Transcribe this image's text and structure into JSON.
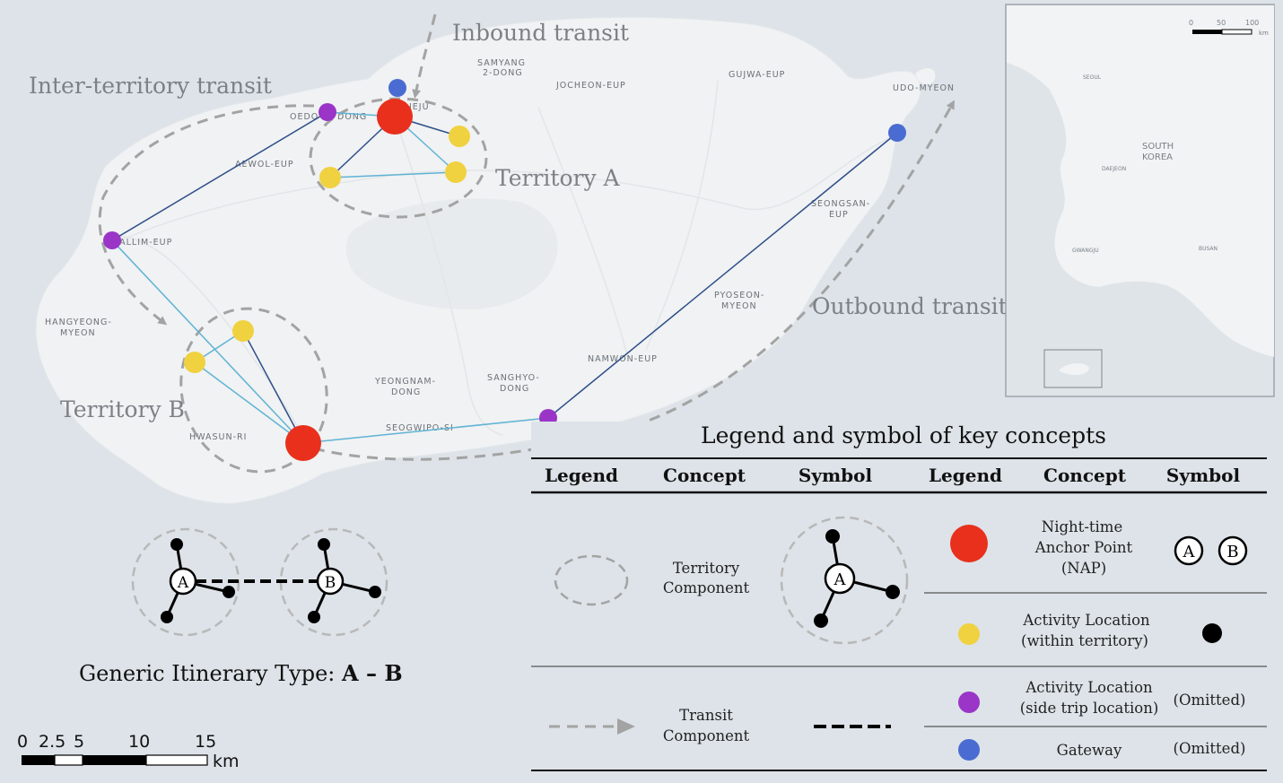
{
  "map_labels": {
    "inbound": "Inbound transit",
    "inter_territory": "Inter-territory transit",
    "outbound": "Outbound transit",
    "territory_a": "Territory A",
    "territory_b": "Territory B",
    "places": [
      "SAMYANG",
      "2-DONG",
      "JOCHEON-EUP",
      "GUJWA-EUP",
      "UDO-MYEON",
      "OEDO",
      "DONG",
      "JEJU",
      "AEWOL-EUP",
      "HALLIM-EUP",
      "SEONGSAN-",
      "EUP",
      "HANGYEONG-",
      "MYEON",
      "PYOSEON-",
      "MYEON",
      "NAMWON-EUP",
      "YEONGNAM-",
      "DONG",
      "SANGHYO-",
      "DONG",
      "SEOGWIPO-SI",
      "HWASUN-RI"
    ]
  },
  "inset": {
    "scale_ticks": [
      "0",
      "50",
      "100"
    ],
    "unit": "km",
    "labels": [
      "SEOUL",
      "SOUTH",
      "KOREA",
      "DAEJEON",
      "GWANGJU",
      "BUSAN"
    ]
  },
  "scale_bar": {
    "ticks": [
      "0",
      "2.5",
      "5",
      "10",
      "15"
    ],
    "unit": "km"
  },
  "itinerary": {
    "label": "Generic Itinerary Type: ",
    "formula": "A – B",
    "node_a": "A",
    "node_b": "B"
  },
  "legend": {
    "title": "Legend and symbol of key concepts",
    "headers": [
      "Legend",
      "Concept",
      "Symbol",
      "Legend",
      "Concept",
      "Symbol"
    ],
    "territory": [
      "Territory",
      "Component"
    ],
    "transit": [
      "Transit",
      "Component"
    ],
    "nap": [
      "Night-time",
      "Anchor Point",
      "(NAP)"
    ],
    "activity_within": [
      "Activity Location",
      "(within territory)"
    ],
    "activity_side": [
      "Activity Location",
      "(side trip location)"
    ],
    "gateway": "Gateway",
    "omitted": "(Omitted)",
    "symbol_a": "A",
    "symbol_b": "B"
  },
  "colors": {
    "nap": "#e8301c",
    "activity_within": "#f0d140",
    "side_trip": "#9a35c7",
    "gateway": "#4a6bd1",
    "link_light": "#5fb3d4",
    "link_dark": "#2e4e8a",
    "dash": "#a3a3a3"
  }
}
